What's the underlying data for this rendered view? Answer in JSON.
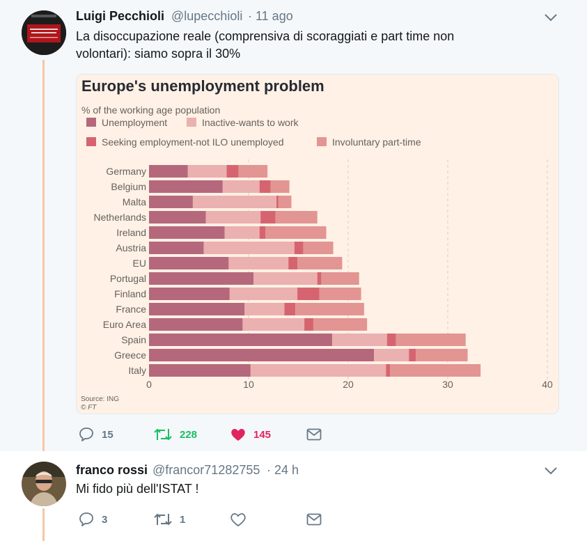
{
  "tweets": [
    {
      "author": "Luigi Pecchioli",
      "handle": "@lupecchioli",
      "time": "· 11 ago",
      "text_line1": "La disoccupazione reale (comprensiva di scoraggiati e part time non",
      "text_line2": "volontari): siamo sopra il 30%",
      "avatar_caption": "LA COSTITUZIONE ECONOMICA",
      "replies": "15",
      "retweets": "228",
      "likes": "145",
      "liked": true
    },
    {
      "author": "franco rossi",
      "handle": "@francor71282755",
      "time": "· 24 h",
      "text": "Mi fido più dell'ISTAT !",
      "replies": "3",
      "retweets": "1",
      "likes": ""
    }
  ],
  "colors": {
    "bg": "#f5f8fa",
    "text": "#14171a",
    "secondary": "#657786",
    "retweet": "#17bf63",
    "like": "#e0245e",
    "thread": "#f3c8a8",
    "chart_bg": "#fff1e5"
  },
  "icons": [
    "reply-icon",
    "retweet-icon",
    "heart-icon",
    "message-icon",
    "chevron-down-icon"
  ],
  "chart_data": {
    "type": "bar",
    "orientation": "horizontal",
    "stacked": true,
    "title": "Europe's unemployment problem",
    "subtitle": "% of the working age population",
    "source": "Source: ING",
    "credit": "© FT",
    "categories": [
      "Germany",
      "Belgium",
      "Malta",
      "Netherlands",
      "Ireland",
      "Austria",
      "EU",
      "Portugal",
      "Finland",
      "France",
      "Euro Area",
      "Spain",
      "Greece",
      "Italy"
    ],
    "series": [
      {
        "name": "Unemployment",
        "color": "#b5687c",
        "values": [
          3.9,
          7.4,
          4.4,
          5.7,
          7.6,
          5.5,
          8.0,
          10.5,
          8.1,
          9.6,
          9.4,
          18.4,
          22.6,
          10.2
        ]
      },
      {
        "name": "Inactive-wants to work",
        "color": "#ebb0b0",
        "values": [
          3.9,
          3.7,
          8.4,
          5.5,
          3.5,
          9.1,
          6.0,
          6.4,
          6.8,
          4.0,
          6.2,
          5.5,
          3.5,
          13.6
        ]
      },
      {
        "name": "Seeking employment-not ILO unemployed",
        "color": "#d66470",
        "values": [
          1.2,
          1.1,
          0.2,
          1.5,
          0.6,
          0.9,
          0.9,
          0.4,
          2.2,
          1.1,
          0.9,
          0.9,
          0.7,
          0.4
        ]
      },
      {
        "name": "Involuntary part-time",
        "color": "#e29592",
        "values": [
          2.9,
          1.9,
          1.3,
          4.2,
          6.1,
          3.0,
          4.5,
          3.8,
          4.2,
          6.9,
          5.4,
          7.0,
          5.2,
          9.1
        ]
      }
    ],
    "xticks": [
      0,
      10,
      20,
      30,
      40
    ],
    "xlim": [
      0,
      40
    ],
    "grid": true,
    "legend_position": "top"
  }
}
